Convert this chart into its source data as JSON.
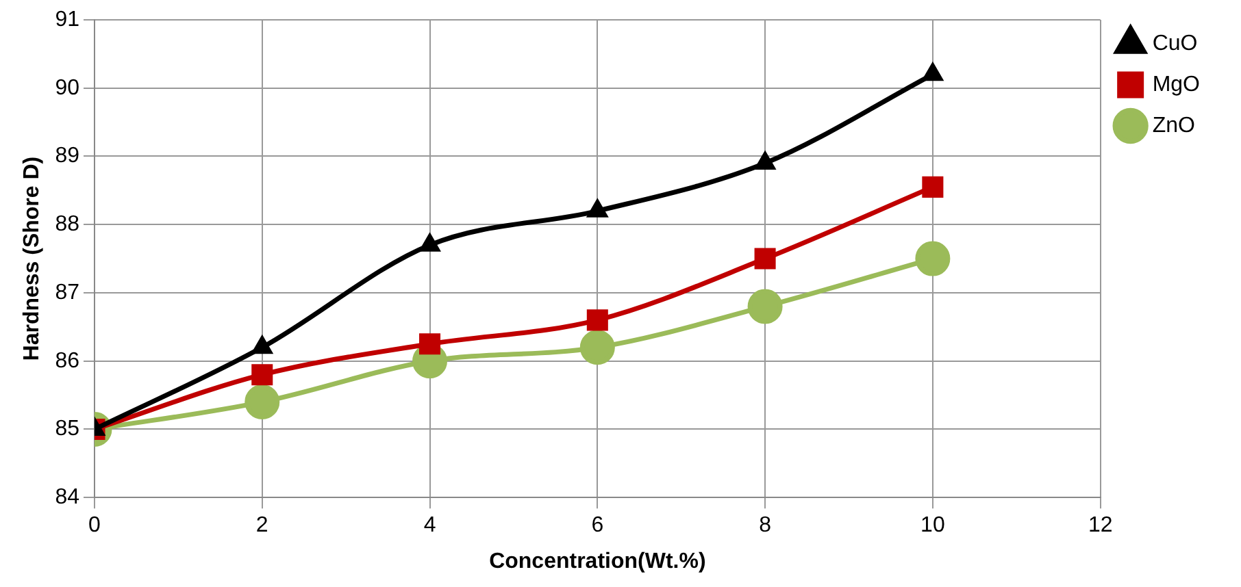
{
  "chart_data": {
    "type": "line",
    "xlabel": "Concentration(Wt.%)",
    "ylabel": "Hardness (Shore D)",
    "x": [
      0,
      2,
      4,
      6,
      8,
      10
    ],
    "series": [
      {
        "name": "CuO",
        "color": "#000000",
        "marker": "triangle",
        "values": [
          85,
          86.2,
          87.7,
          88.2,
          88.9,
          90.2
        ]
      },
      {
        "name": "MgO",
        "color": "#c00000",
        "marker": "square",
        "values": [
          85,
          85.8,
          86.25,
          86.6,
          87.5,
          88.55
        ]
      },
      {
        "name": "ZnO",
        "color": "#9bbb59",
        "marker": "circle",
        "values": [
          85,
          85.4,
          86.0,
          86.2,
          86.8,
          87.5
        ]
      }
    ],
    "xlim": [
      0,
      12
    ],
    "xticks": [
      0,
      2,
      4,
      6,
      8,
      10,
      12
    ],
    "ylim": [
      84,
      91
    ],
    "yticks": [
      84,
      85,
      86,
      87,
      88,
      89,
      90,
      91
    ],
    "grid": true,
    "legend": "top right"
  }
}
